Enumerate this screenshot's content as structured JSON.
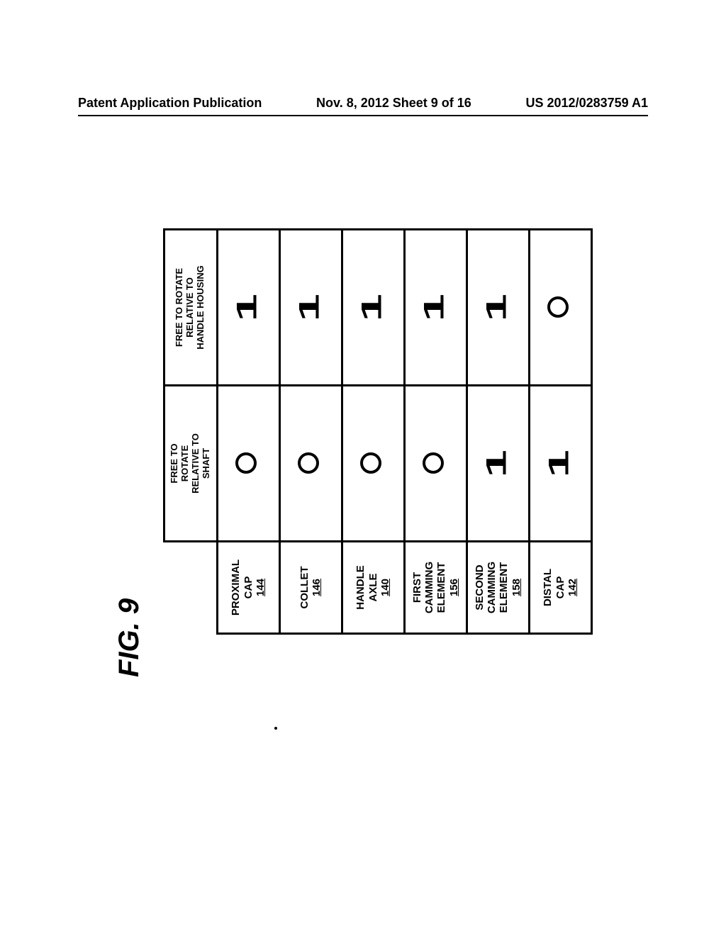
{
  "header": {
    "left": "Patent Application Publication",
    "center": "Nov. 8, 2012  Sheet 9 of 16",
    "right": "US 2012/0283759 A1"
  },
  "figure_caption": "FIG. 9",
  "table": {
    "column_headers": [
      "FREE TO\nROTATE\nRELATIVE TO\nSHAFT",
      "FREE TO ROTATE\nRELATIVE TO\nHANDLE HOUSING"
    ],
    "rows": [
      {
        "label": "PROXIMAL\nCAP",
        "ref": "144",
        "cells": [
          "O",
          "1"
        ]
      },
      {
        "label": "COLLET",
        "ref": "146",
        "cells": [
          "O",
          "1"
        ]
      },
      {
        "label": "HANDLE\nAXLE",
        "ref": "140",
        "cells": [
          "O",
          "1"
        ]
      },
      {
        "label": "FIRST\nCAMMING\nELEMENT",
        "ref": "156",
        "cells": [
          "O",
          "1"
        ]
      },
      {
        "label": "SECOND\nCAMMING\nELEMENT",
        "ref": "158",
        "cells": [
          "1",
          "1"
        ]
      },
      {
        "label": "DISTAL\nCAP",
        "ref": "142",
        "cells": [
          "1",
          "O"
        ]
      }
    ]
  },
  "colors": {
    "background": "#ffffff",
    "ink": "#000000"
  }
}
